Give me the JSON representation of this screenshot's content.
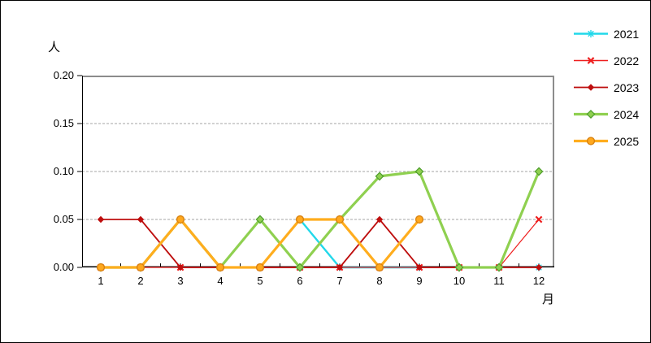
{
  "window": {
    "background": "#ffffff",
    "border_color": "#000000"
  },
  "chart_data": {
    "type": "line",
    "title": "",
    "ylabel": "人",
    "xlabel": "月",
    "x": [
      "1",
      "2",
      "3",
      "4",
      "5",
      "6",
      "7",
      "8",
      "9",
      "10",
      "11",
      "12"
    ],
    "ylim": [
      0,
      0.2
    ],
    "yticks": [
      0,
      0.05,
      0.1,
      0.15,
      0.2
    ],
    "ytick_labels": [
      "0.00",
      "0.05",
      "0.10",
      "0.15",
      "0.20"
    ],
    "grid": {
      "horizontal_dashed_at": [
        0.05,
        0.1,
        0.15
      ],
      "color": "#a6a6a6"
    },
    "frame": {
      "top_right_color": "#8c8c8c",
      "bottom_left_color": "#000000"
    },
    "legend_position": "top-right",
    "series": [
      {
        "name": "2021",
        "color": "#22d8ea",
        "marker": "asterisk",
        "marker_color": "#22d8ea",
        "line_width": 2.4,
        "values": [
          null,
          null,
          null,
          null,
          0,
          0.05,
          0,
          0,
          0,
          null,
          null,
          0
        ]
      },
      {
        "name": "2022",
        "color": "#ee1d1d",
        "marker": "x",
        "marker_color": "#ee1d1d",
        "line_width": 1.2,
        "values": [
          0,
          0,
          0,
          0,
          0,
          0,
          0,
          0,
          0,
          0,
          0,
          0.05
        ]
      },
      {
        "name": "2023",
        "color": "#be0e0e",
        "marker": "diamond_filled",
        "marker_color": "#be0e0e",
        "line_width": 1.8,
        "values": [
          0.05,
          0.05,
          0,
          0,
          0,
          0,
          0,
          0.05,
          0,
          0,
          0,
          0
        ]
      },
      {
        "name": "2024",
        "color": "#8fd050",
        "marker": "diamond",
        "marker_fill": "#8fd050",
        "marker_stroke": "#4f9e2d",
        "line_width": 3.2,
        "values": [
          0,
          0,
          0.05,
          0,
          0.05,
          0,
          0.05,
          0.095,
          0.1,
          0,
          0,
          0.1
        ]
      },
      {
        "name": "2025",
        "color": "#ffad1e",
        "marker": "circle",
        "marker_fill": "#ffa81e",
        "marker_stroke": "#d9820f",
        "line_width": 3.2,
        "values": [
          0,
          0,
          0.05,
          0,
          0,
          0.05,
          0.05,
          0,
          0.05,
          null,
          null,
          null
        ]
      }
    ]
  }
}
